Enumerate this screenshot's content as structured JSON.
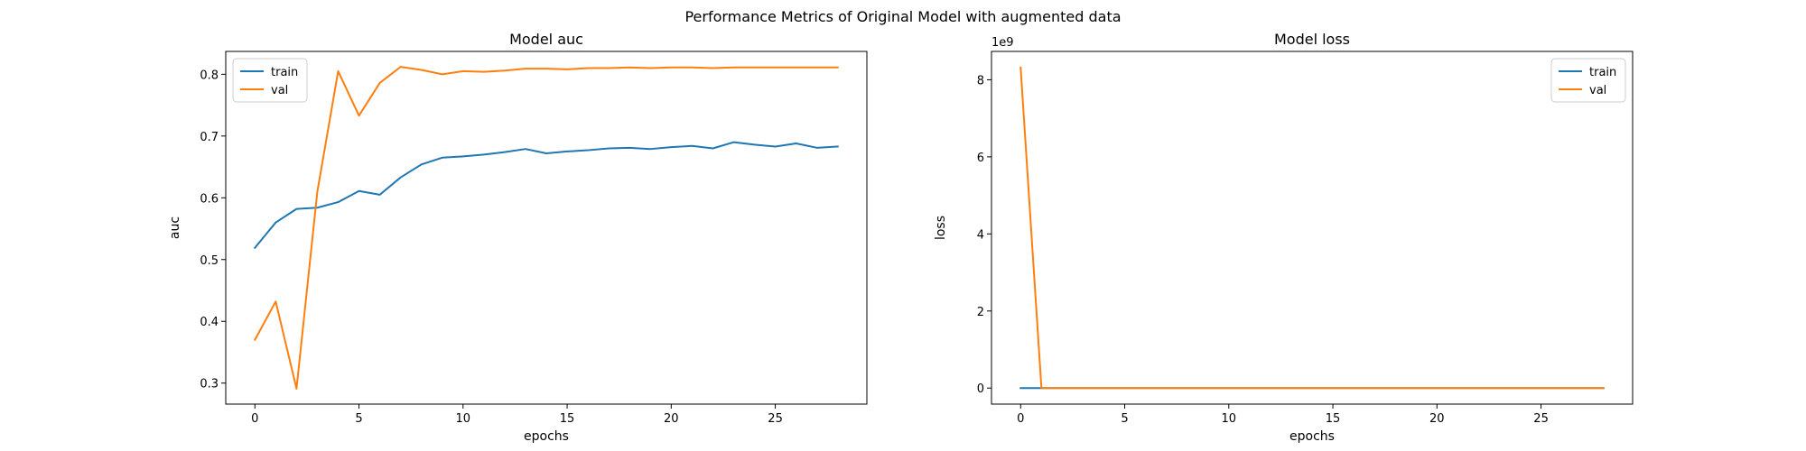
{
  "suptitle": "Performance Metrics of Original Model with augmented data",
  "chart_data": [
    {
      "type": "line",
      "title": "Model auc",
      "xlabel": "epochs",
      "ylabel": "auc",
      "xlim": [
        -1.4,
        29.4
      ],
      "ylim": [
        0.266,
        0.837
      ],
      "xticks": [
        0,
        5,
        10,
        15,
        20,
        25
      ],
      "yticks": [
        0.3,
        0.4,
        0.5,
        0.6,
        0.7,
        0.8
      ],
      "tick_labels_x": [
        "0",
        "5",
        "10",
        "15",
        "20",
        "25"
      ],
      "tick_labels_y": [
        "0.3",
        "0.4",
        "0.5",
        "0.6",
        "0.7",
        "0.8"
      ],
      "offset_label": "",
      "legend": {
        "placement": "upper left",
        "entries": [
          "train",
          "val"
        ]
      },
      "grid": false,
      "x": [
        0,
        1,
        2,
        3,
        4,
        5,
        6,
        7,
        8,
        9,
        10,
        11,
        12,
        13,
        14,
        15,
        16,
        17,
        18,
        19,
        20,
        21,
        22,
        23,
        24,
        25,
        26,
        27,
        28
      ],
      "series": [
        {
          "name": "train",
          "color": "#1f77b4",
          "values": [
            0.519,
            0.56,
            0.582,
            0.584,
            0.593,
            0.611,
            0.605,
            0.633,
            0.654,
            0.665,
            0.667,
            0.67,
            0.674,
            0.679,
            0.672,
            0.675,
            0.677,
            0.68,
            0.681,
            0.679,
            0.682,
            0.684,
            0.68,
            0.69,
            0.686,
            0.683,
            0.688,
            0.681,
            0.683
          ]
        },
        {
          "name": "val",
          "color": "#ff7f0e",
          "values": [
            0.37,
            0.432,
            0.291,
            0.61,
            0.805,
            0.733,
            0.786,
            0.812,
            0.807,
            0.8,
            0.805,
            0.804,
            0.806,
            0.809,
            0.809,
            0.808,
            0.81,
            0.81,
            0.811,
            0.81,
            0.811,
            0.811,
            0.81,
            0.811,
            0.811,
            0.811,
            0.811,
            0.811,
            0.811
          ]
        }
      ]
    },
    {
      "type": "line",
      "title": "Model loss",
      "xlabel": "epochs",
      "ylabel": "loss",
      "xlim": [
        -1.4,
        29.4
      ],
      "ylim": [
        -416000000,
        8736000000
      ],
      "xticks": [
        0,
        5,
        10,
        15,
        20,
        25
      ],
      "yticks": [
        0,
        2000000000,
        4000000000,
        6000000000,
        8000000000
      ],
      "tick_labels_x": [
        "0",
        "5",
        "10",
        "15",
        "20",
        "25"
      ],
      "tick_labels_y": [
        "0",
        "2",
        "4",
        "6",
        "8"
      ],
      "offset_label": "1e9",
      "legend": {
        "placement": "upper right",
        "entries": [
          "train",
          "val"
        ]
      },
      "grid": false,
      "x": [
        0,
        1,
        2,
        3,
        4,
        5,
        6,
        7,
        8,
        9,
        10,
        11,
        12,
        13,
        14,
        15,
        16,
        17,
        18,
        19,
        20,
        21,
        22,
        23,
        24,
        25,
        26,
        27,
        28
      ],
      "series": [
        {
          "name": "train",
          "color": "#1f77b4",
          "values": [
            1.0,
            1.0,
            1.0,
            1.0,
            1.0,
            1.0,
            1.0,
            1.0,
            1.0,
            1.0,
            1.0,
            1.0,
            1.0,
            1.0,
            1.0,
            1.0,
            1.0,
            1.0,
            1.0,
            1.0,
            1.0,
            1.0,
            1.0,
            1.0,
            1.0,
            1.0,
            1.0,
            1.0,
            1.0
          ]
        },
        {
          "name": "val",
          "color": "#ff7f0e",
          "values": [
            8320000000,
            0.7,
            0.7,
            0.7,
            0.7,
            0.7,
            0.7,
            0.7,
            0.7,
            0.7,
            0.7,
            0.7,
            0.7,
            0.7,
            0.7,
            0.7,
            0.7,
            0.7,
            0.7,
            0.7,
            0.7,
            0.7,
            0.7,
            0.7,
            0.7,
            0.7,
            0.7,
            0.7,
            0.7
          ]
        }
      ]
    }
  ]
}
